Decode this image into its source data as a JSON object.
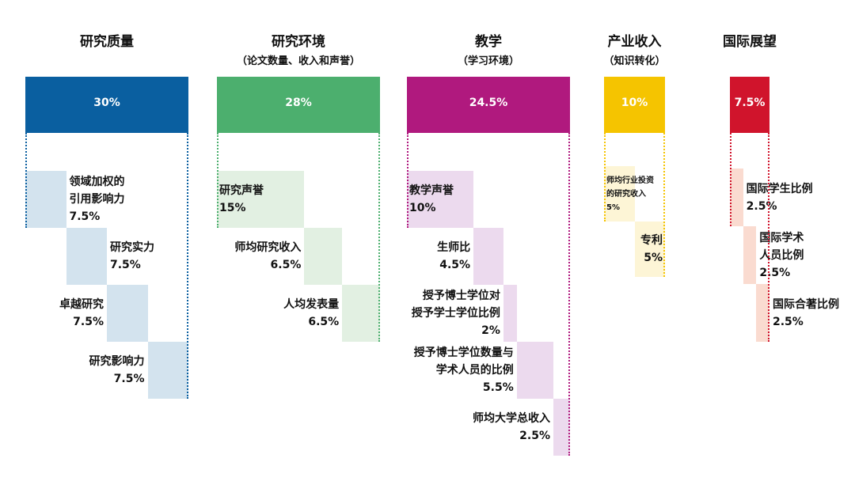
{
  "pillars": [
    {
      "title": "研究质量",
      "weight": "30%",
      "items": [
        {
          "label": [
            "领域加权的",
            "引用影响力"
          ],
          "weight": "7.5%"
        },
        {
          "label": [
            "研究实力"
          ],
          "weight": "7.5%"
        },
        {
          "label": [
            "卓越研究"
          ],
          "weight": "7.5%"
        },
        {
          "label": [
            "研究影响力"
          ],
          "weight": "7.5%"
        }
      ]
    },
    {
      "title": "研究环境",
      "subtitle": "（论文数量、收入和声誉）",
      "weight": "28%",
      "items": [
        {
          "label": [
            "研究声誉"
          ],
          "weight": "15%"
        },
        {
          "label": [
            "师均研究收入"
          ],
          "weight": "6.5%"
        },
        {
          "label": [
            "人均发表量"
          ],
          "weight": "6.5%"
        }
      ]
    },
    {
      "title": "教学",
      "subtitle": "（学习环境）",
      "weight": "24.5%",
      "items": [
        {
          "label": [
            "教学声誉"
          ],
          "weight": "10%"
        },
        {
          "label": [
            "生师比"
          ],
          "weight": "4.5%"
        },
        {
          "label": [
            "授予博士学位对",
            "授予学士学位比例"
          ],
          "weight": "2%"
        },
        {
          "label": [
            "授予博士学位数量与",
            "学术人员的比例"
          ],
          "weight": "5.5%"
        },
        {
          "label": [
            "师均大学总收入"
          ],
          "weight": "2.5%"
        }
      ]
    },
    {
      "title": "产业收入",
      "subtitle": "（知识转化）",
      "weight": "10%",
      "items": [
        {
          "label": [
            "师均行业投资",
            "的研究收入"
          ],
          "weight": "5%"
        },
        {
          "label": [
            "专利"
          ],
          "weight": "5%"
        }
      ]
    },
    {
      "title": "国际展望",
      "weight": "7.5%",
      "items": [
        {
          "label": [
            "国际学生比例"
          ],
          "weight": "2.5%"
        },
        {
          "label": [
            "国际学术",
            "人员比例"
          ],
          "weight": "2.5%"
        },
        {
          "label": [
            "国际合著比例"
          ],
          "weight": "2.5%"
        }
      ]
    }
  ]
}
